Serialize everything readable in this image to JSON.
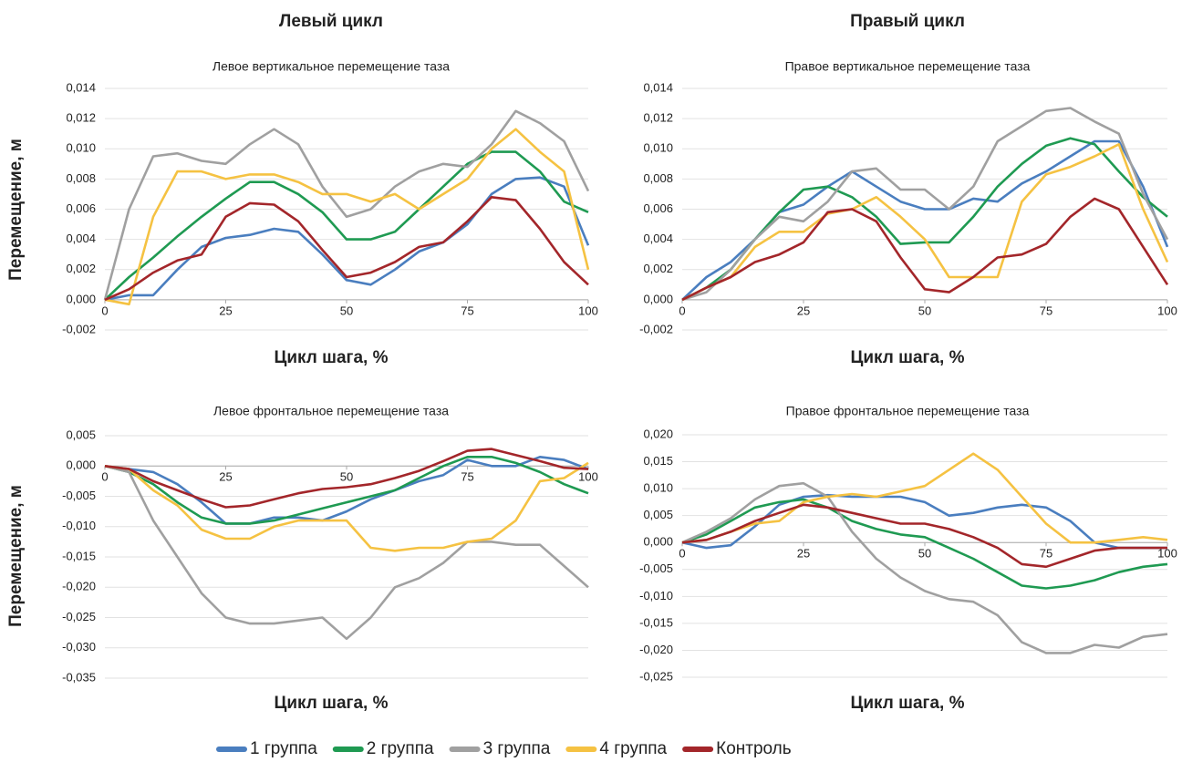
{
  "columns": [
    "Левый цикл",
    "Правый цикл"
  ],
  "legend": [
    {
      "name": "1 группа",
      "color": "#4a7ebf"
    },
    {
      "name": "2 группа",
      "color": "#1f9a52"
    },
    {
      "name": "3 группа",
      "color": "#a0a0a0"
    },
    {
      "name": "4 группа",
      "color": "#f5c242"
    },
    {
      "name": "Контроль",
      "color": "#a3262a"
    }
  ],
  "chart_data": [
    {
      "type": "line",
      "title": "Левое вертикальное перемещение таза",
      "ylabel": "Перемещение, м",
      "xlabel": "Цикл шага, %",
      "x": [
        0,
        5,
        10,
        15,
        20,
        25,
        30,
        35,
        40,
        45,
        50,
        55,
        60,
        65,
        70,
        75,
        80,
        85,
        90,
        95,
        100
      ],
      "xlim": [
        0,
        100
      ],
      "xticks": [
        0,
        25,
        50,
        75,
        100
      ],
      "ylim": [
        -0.002,
        0.014
      ],
      "yticks": [
        {
          "value": -0.002,
          "label": "-0,002"
        },
        {
          "value": 0,
          "label": "0,000"
        },
        {
          "value": 0.002,
          "label": "0,002"
        },
        {
          "value": 0.004,
          "label": "0,004"
        },
        {
          "value": 0.006,
          "label": "0,006"
        },
        {
          "value": 0.008,
          "label": "0,008"
        },
        {
          "value": 0.01,
          "label": "0,010"
        },
        {
          "value": 0.012,
          "label": "0,012"
        },
        {
          "value": 0.014,
          "label": "0,014"
        }
      ],
      "grid": true,
      "series": [
        {
          "values": [
            0,
            0.0003,
            0.0003,
            0.002,
            0.0035,
            0.0041,
            0.0043,
            0.0047,
            0.0045,
            0.003,
            0.0013,
            0.001,
            0.002,
            0.0032,
            0.0038,
            0.005,
            0.007,
            0.008,
            0.0081,
            0.0075,
            0.0036
          ]
        },
        {
          "values": [
            0,
            0.0015,
            0.0028,
            0.0042,
            0.0055,
            0.0067,
            0.0078,
            0.0078,
            0.007,
            0.0058,
            0.004,
            0.004,
            0.0045,
            0.006,
            0.0075,
            0.009,
            0.0098,
            0.0098,
            0.0085,
            0.0065,
            0.0058
          ]
        },
        {
          "values": [
            0,
            0.006,
            0.0095,
            0.0097,
            0.0092,
            0.009,
            0.0103,
            0.0113,
            0.0103,
            0.0075,
            0.0055,
            0.006,
            0.0075,
            0.0085,
            0.009,
            0.0088,
            0.0103,
            0.0125,
            0.0117,
            0.0105,
            0.0072
          ]
        },
        {
          "values": [
            0,
            -0.0003,
            0.0055,
            0.0085,
            0.0085,
            0.008,
            0.0083,
            0.0083,
            0.0078,
            0.007,
            0.007,
            0.0065,
            0.007,
            0.006,
            0.007,
            0.008,
            0.01,
            0.0113,
            0.0098,
            0.0085,
            0.002
          ]
        },
        {
          "values": [
            0,
            0.0007,
            0.0018,
            0.0026,
            0.003,
            0.0055,
            0.0064,
            0.0063,
            0.0052,
            0.0033,
            0.0015,
            0.0018,
            0.0025,
            0.0035,
            0.0038,
            0.0052,
            0.0068,
            0.0066,
            0.0047,
            0.0025,
            0.001
          ]
        }
      ]
    },
    {
      "type": "line",
      "title": "Правое вертикальное перемещение таза",
      "xlabel": "Цикл шага, %",
      "x": [
        0,
        5,
        10,
        15,
        20,
        25,
        30,
        35,
        40,
        45,
        50,
        55,
        60,
        65,
        70,
        75,
        80,
        85,
        90,
        95,
        100
      ],
      "xlim": [
        0,
        100
      ],
      "xticks": [
        0,
        25,
        50,
        75,
        100
      ],
      "ylim": [
        -0.002,
        0.014
      ],
      "yticks": [
        {
          "value": -0.002,
          "label": "-0,002"
        },
        {
          "value": 0,
          "label": "0,000"
        },
        {
          "value": 0.002,
          "label": "0,002"
        },
        {
          "value": 0.004,
          "label": "0,004"
        },
        {
          "value": 0.006,
          "label": "0,006"
        },
        {
          "value": 0.008,
          "label": "0,008"
        },
        {
          "value": 0.01,
          "label": "0,010"
        },
        {
          "value": 0.012,
          "label": "0,012"
        },
        {
          "value": 0.014,
          "label": "0,014"
        }
      ],
      "grid": true,
      "series": [
        {
          "values": [
            0,
            0.0015,
            0.0025,
            0.004,
            0.0058,
            0.0063,
            0.0075,
            0.0085,
            0.0075,
            0.0065,
            0.006,
            0.006,
            0.0067,
            0.0065,
            0.0077,
            0.0085,
            0.0095,
            0.0105,
            0.0105,
            0.0075,
            0.0035
          ]
        },
        {
          "values": [
            0,
            0.0008,
            0.002,
            0.004,
            0.0058,
            0.0073,
            0.0075,
            0.0068,
            0.0055,
            0.0037,
            0.0038,
            0.0038,
            0.0055,
            0.0075,
            0.009,
            0.0102,
            0.0107,
            0.0103,
            0.0085,
            0.0068,
            0.0055
          ]
        },
        {
          "values": [
            0,
            0.0005,
            0.002,
            0.004,
            0.0055,
            0.0052,
            0.0065,
            0.0085,
            0.0087,
            0.0073,
            0.0073,
            0.006,
            0.0075,
            0.0105,
            0.0115,
            0.0125,
            0.0127,
            0.0118,
            0.011,
            0.007,
            0.004
          ]
        },
        {
          "values": [
            0,
            0.0008,
            0.0015,
            0.0035,
            0.0045,
            0.0045,
            0.0057,
            0.006,
            0.0068,
            0.0055,
            0.004,
            0.0015,
            0.0015,
            0.0015,
            0.0065,
            0.0083,
            0.0088,
            0.0095,
            0.0103,
            0.006,
            0.0025
          ]
        },
        {
          "values": [
            0,
            0.0008,
            0.0015,
            0.0025,
            0.003,
            0.0038,
            0.0058,
            0.006,
            0.0052,
            0.0028,
            0.0007,
            0.0005,
            0.0015,
            0.0028,
            0.003,
            0.0037,
            0.0055,
            0.0067,
            0.006,
            0.0035,
            0.001
          ]
        }
      ]
    },
    {
      "type": "line",
      "title": "Левое фронтальное перемещение таза",
      "ylabel": "Перемещение, м",
      "xlabel": "Цикл шага, %",
      "x": [
        0,
        5,
        10,
        15,
        20,
        25,
        30,
        35,
        40,
        45,
        50,
        55,
        60,
        65,
        70,
        75,
        80,
        85,
        90,
        95,
        100
      ],
      "xlim": [
        0,
        100
      ],
      "xticks": [
        0,
        25,
        50,
        75,
        100
      ],
      "ylim": [
        -0.035,
        0.005
      ],
      "yticks": [
        {
          "value": -0.035,
          "label": "-0,035"
        },
        {
          "value": -0.03,
          "label": "-0,030"
        },
        {
          "value": -0.025,
          "label": "-0,025"
        },
        {
          "value": -0.02,
          "label": "-0,020"
        },
        {
          "value": -0.015,
          "label": "-0,015"
        },
        {
          "value": -0.01,
          "label": "-0,010"
        },
        {
          "value": -0.005,
          "label": "-0,005"
        },
        {
          "value": 0,
          "label": "0,000"
        },
        {
          "value": 0.005,
          "label": "0,005"
        }
      ],
      "grid": true,
      "series": [
        {
          "values": [
            0,
            -0.0005,
            -0.001,
            -0.003,
            -0.006,
            -0.0095,
            -0.0095,
            -0.0085,
            -0.0085,
            -0.009,
            -0.0075,
            -0.0055,
            -0.004,
            -0.0025,
            -0.0015,
            0.001,
            0,
            0,
            0.0015,
            0.001,
            -0.0005
          ]
        },
        {
          "values": [
            0,
            -0.001,
            -0.003,
            -0.006,
            -0.0085,
            -0.0095,
            -0.0095,
            -0.009,
            -0.008,
            -0.007,
            -0.006,
            -0.005,
            -0.004,
            -0.002,
            0,
            0.0015,
            0.0015,
            0.0005,
            -0.001,
            -0.003,
            -0.0045
          ]
        },
        {
          "values": [
            0,
            -0.001,
            -0.009,
            -0.015,
            -0.021,
            -0.025,
            -0.026,
            -0.026,
            -0.0255,
            -0.025,
            -0.0285,
            -0.025,
            -0.02,
            -0.0185,
            -0.016,
            -0.0125,
            -0.0125,
            -0.013,
            -0.013,
            -0.0165,
            -0.02
          ]
        },
        {
          "values": [
            0,
            -0.0005,
            -0.004,
            -0.0065,
            -0.0105,
            -0.012,
            -0.012,
            -0.01,
            -0.009,
            -0.009,
            -0.009,
            -0.0135,
            -0.014,
            -0.0135,
            -0.0135,
            -0.0125,
            -0.012,
            -0.009,
            -0.0025,
            -0.002,
            0.0005
          ]
        },
        {
          "values": [
            0,
            -0.0005,
            -0.0025,
            -0.004,
            -0.0055,
            -0.0068,
            -0.0065,
            -0.0055,
            -0.0045,
            -0.0038,
            -0.0035,
            -0.003,
            -0.002,
            -0.0008,
            0.0008,
            0.0025,
            0.0028,
            0.0018,
            0.0008,
            -0.0003,
            -0.0005
          ]
        }
      ]
    },
    {
      "type": "line",
      "title": "Правое фронтальное перемещение таза",
      "xlabel": "Цикл шага, %",
      "x": [
        0,
        5,
        10,
        15,
        20,
        25,
        30,
        35,
        40,
        45,
        50,
        55,
        60,
        65,
        70,
        75,
        80,
        85,
        90,
        95,
        100
      ],
      "xlim": [
        0,
        100
      ],
      "xticks": [
        0,
        25,
        50,
        75,
        100
      ],
      "ylim": [
        -0.025,
        0.02
      ],
      "yticks": [
        {
          "value": -0.025,
          "label": "-0,025"
        },
        {
          "value": -0.02,
          "label": "-0,020"
        },
        {
          "value": -0.015,
          "label": "-0,015"
        },
        {
          "value": -0.01,
          "label": "-0,010"
        },
        {
          "value": -0.005,
          "label": "-0,005"
        },
        {
          "value": 0,
          "label": "0,000"
        },
        {
          "value": 0.005,
          "label": "0,005"
        },
        {
          "value": 0.01,
          "label": "0,010"
        },
        {
          "value": 0.015,
          "label": "0,015"
        },
        {
          "value": 0.02,
          "label": "0,020"
        }
      ],
      "grid": true,
      "series": [
        {
          "values": [
            0,
            -0.001,
            -0.0005,
            0.003,
            0.007,
            0.0085,
            0.0088,
            0.0085,
            0.0085,
            0.0085,
            0.0075,
            0.005,
            0.0055,
            0.0065,
            0.007,
            0.0065,
            0.004,
            0,
            -0.001,
            -0.001,
            -0.001
          ]
        },
        {
          "values": [
            0,
            0.0015,
            0.004,
            0.0065,
            0.0075,
            0.008,
            0.0065,
            0.004,
            0.0025,
            0.0015,
            0.001,
            -0.001,
            -0.003,
            -0.0055,
            -0.008,
            -0.0085,
            -0.008,
            -0.007,
            -0.0055,
            -0.0045,
            -0.004
          ]
        },
        {
          "values": [
            0,
            0.002,
            0.0045,
            0.008,
            0.0105,
            0.011,
            0.0085,
            0.002,
            -0.003,
            -0.0065,
            -0.009,
            -0.0105,
            -0.011,
            -0.0135,
            -0.0185,
            -0.0205,
            -0.0205,
            -0.019,
            -0.0195,
            -0.0175,
            -0.017
          ]
        },
        {
          "values": [
            0,
            0.0005,
            0.002,
            0.0035,
            0.004,
            0.0075,
            0.0085,
            0.009,
            0.0085,
            0.0095,
            0.0105,
            0.0135,
            0.0165,
            0.0135,
            0.0085,
            0.0035,
            0,
            0,
            0.0005,
            0.001,
            0.0005
          ]
        },
        {
          "values": [
            0,
            0.0005,
            0.002,
            0.004,
            0.0055,
            0.007,
            0.0065,
            0.0055,
            0.0045,
            0.0035,
            0.0035,
            0.0025,
            0.001,
            -0.001,
            -0.004,
            -0.0045,
            -0.003,
            -0.0015,
            -0.001,
            -0.001,
            -0.001
          ]
        }
      ]
    }
  ]
}
